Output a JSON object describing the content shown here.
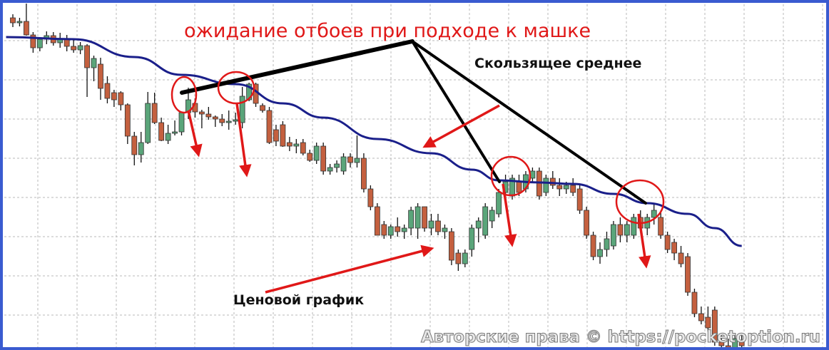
{
  "annotations": {
    "title": "ожидание отбоев при подходе к машке",
    "ma_label": "Скользящее среднее",
    "price_label": "Ценовой график",
    "watermark": "Авторские права © https://pocketoption.ru"
  },
  "colors": {
    "border": "#3a5bd0",
    "ma_line": "#1a1f8a",
    "bull_candle": "#5aa57a",
    "bear_candle": "#c4603f",
    "annotation_red": "#e01818",
    "grid": "#b8b8b8"
  },
  "chart_data": {
    "type": "candlestick",
    "title": "",
    "xlabel": "",
    "ylabel": "",
    "grid": true,
    "ylim": [
      0,
      50
    ],
    "candles_ohlc": [
      [
        47.5,
        48,
        46.2,
        46.8
      ],
      [
        46.9,
        47.5,
        46.3,
        47.0
      ],
      [
        47.0,
        49.5,
        45.0,
        45.1
      ],
      [
        45.1,
        45.5,
        42.6,
        43.3
      ],
      [
        43.3,
        44.7,
        42.8,
        44.5
      ],
      [
        44.5,
        45.6,
        43.8,
        45.0
      ],
      [
        45.0,
        45.5,
        43.6,
        44.0
      ],
      [
        44.0,
        45.4,
        43.3,
        44.6
      ],
      [
        44.6,
        45.1,
        42.8,
        43.5
      ],
      [
        43.5,
        44.4,
        42.6,
        43.0
      ],
      [
        43.0,
        44.1,
        42.4,
        43.6
      ],
      [
        43.6,
        43.8,
        36.4,
        40.5
      ],
      [
        40.5,
        42.2,
        38.6,
        41.8
      ],
      [
        41.0,
        41.9,
        36.0,
        37.6
      ],
      [
        38.3,
        39.3,
        35.5,
        36.2
      ],
      [
        37.0,
        37.4,
        35.0,
        36.0
      ],
      [
        37.0,
        37.2,
        34.5,
        35.3
      ],
      [
        35.3,
        35.5,
        29.8,
        30.9
      ],
      [
        30.9,
        31.5,
        26.8,
        28.3
      ],
      [
        28.3,
        31.5,
        27.2,
        30.0
      ],
      [
        30.0,
        37.1,
        29.8,
        35.5
      ],
      [
        35.5,
        37.0,
        32.6,
        32.8
      ],
      [
        32.8,
        33.5,
        30.2,
        30.3
      ],
      [
        30.3,
        32.5,
        29.8,
        31.3
      ],
      [
        31.3,
        33.1,
        31.0,
        31.5
      ],
      [
        31.5,
        34.3,
        31.0,
        34.2
      ],
      [
        34.2,
        37.7,
        33.3,
        36.0
      ],
      [
        35.5,
        36.2,
        33.5,
        34.3
      ],
      [
        34.3,
        34.6,
        32.0,
        34.0
      ],
      [
        34.0,
        35.0,
        33.2,
        33.6
      ],
      [
        33.6,
        33.8,
        32.2,
        33.3
      ],
      [
        33.3,
        34.0,
        32.3,
        32.8
      ],
      [
        32.8,
        34.5,
        31.8,
        33.0
      ],
      [
        33.0,
        34.2,
        32.5,
        33.2
      ],
      [
        32.8,
        37.8,
        32.0,
        36.5
      ],
      [
        36.0,
        38.4,
        35.8,
        38.2
      ],
      [
        38.2,
        38.4,
        35.0,
        35.5
      ],
      [
        35.2,
        35.5,
        34.2,
        34.5
      ],
      [
        34.5,
        35.0,
        29.8,
        30.0
      ],
      [
        31.8,
        32.5,
        29.5,
        30.2
      ],
      [
        32.5,
        33.0,
        29.4,
        29.5
      ],
      [
        30.0,
        30.8,
        28.8,
        29.5
      ],
      [
        29.5,
        30.5,
        28.5,
        29.8
      ],
      [
        30.0,
        30.5,
        28.2,
        28.5
      ],
      [
        28.5,
        29.0,
        27.3,
        27.5
      ],
      [
        27.5,
        30.0,
        27.0,
        29.5
      ],
      [
        29.5,
        30.0,
        25.5,
        26.0
      ],
      [
        26.0,
        27.0,
        25.5,
        26.5
      ],
      [
        26.5,
        27.5,
        25.8,
        27.0
      ],
      [
        26.0,
        28.5,
        25.5,
        28.0
      ],
      [
        28.0,
        28.5,
        26.5,
        27.2
      ],
      [
        27.2,
        31.0,
        26.5,
        27.8
      ],
      [
        27.8,
        28.5,
        23.0,
        23.5
      ],
      [
        23.5,
        24.0,
        20.5,
        21.0
      ],
      [
        21.0,
        21.5,
        17.0,
        17.0
      ],
      [
        18.5,
        19.0,
        16.5,
        17.0
      ],
      [
        17.0,
        18.5,
        16.5,
        18.2
      ],
      [
        18.2,
        19.5,
        16.8,
        17.5
      ],
      [
        17.5,
        18.5,
        16.5,
        18.0
      ],
      [
        18.0,
        21.0,
        17.0,
        20.5
      ],
      [
        18.0,
        21.5,
        16.5,
        21.0
      ],
      [
        21.0,
        21.0,
        17.5,
        18.0
      ],
      [
        18.0,
        20.0,
        17.0,
        19.0
      ],
      [
        19.0,
        20.0,
        17.0,
        17.5
      ],
      [
        17.5,
        18.5,
        16.5,
        18.0
      ],
      [
        17.5,
        18.0,
        12.8,
        13.5
      ],
      [
        14.5,
        15.0,
        12.0,
        13.0
      ],
      [
        13.0,
        15.0,
        12.5,
        14.5
      ],
      [
        15.0,
        18.5,
        14.0,
        18.0
      ],
      [
        18.0,
        19.5,
        16.0,
        19.0
      ],
      [
        17.0,
        21.5,
        16.5,
        21.0
      ],
      [
        19.0,
        21.0,
        18.0,
        20.5
      ],
      [
        20.0,
        23.5,
        19.5,
        23.0
      ],
      [
        23.0,
        25.5,
        22.0,
        24.5
      ],
      [
        22.5,
        25.5,
        22.0,
        25.0
      ],
      [
        24.5,
        25.5,
        22.5,
        23.0
      ],
      [
        23.5,
        26.0,
        23.0,
        25.5
      ],
      [
        25.0,
        26.5,
        24.5,
        26.0
      ],
      [
        26.0,
        26.5,
        22.0,
        22.5
      ],
      [
        23.0,
        25.5,
        22.5,
        25.0
      ],
      [
        25.0,
        26.0,
        23.5,
        24.0
      ],
      [
        24.0,
        25.0,
        22.5,
        23.5
      ],
      [
        23.5,
        24.5,
        22.8,
        24.0
      ],
      [
        24.0,
        25.0,
        22.5,
        23.0
      ],
      [
        23.5,
        24.0,
        20.0,
        20.5
      ],
      [
        20.5,
        21.0,
        16.5,
        17.0
      ],
      [
        17.0,
        17.5,
        13.5,
        14.0
      ],
      [
        14.0,
        16.0,
        13.0,
        15.0
      ],
      [
        15.0,
        17.5,
        14.0,
        16.5
      ],
      [
        15.5,
        19.0,
        15.0,
        18.5
      ],
      [
        18.5,
        19.5,
        16.0,
        17.0
      ],
      [
        17.0,
        19.0,
        16.0,
        18.5
      ],
      [
        17.0,
        20.0,
        16.5,
        19.5
      ],
      [
        19.5,
        20.5,
        17.5,
        18.0
      ],
      [
        18.0,
        20.0,
        17.0,
        19.5
      ],
      [
        19.5,
        21.5,
        18.5,
        20.5
      ],
      [
        19.5,
        20.5,
        16.5,
        17.0
      ],
      [
        17.0,
        17.5,
        14.5,
        15.0
      ],
      [
        16.0,
        16.5,
        13.5,
        14.5
      ],
      [
        14.5,
        15.5,
        12.5,
        13.0
      ],
      [
        14.0,
        14.5,
        8.5,
        9.0
      ],
      [
        9.0,
        9.5,
        5.5,
        6.0
      ],
      [
        6.0,
        7.0,
        4.5,
        5.0
      ],
      [
        5.5,
        7.0,
        3.5,
        4.0
      ],
      [
        6.5,
        7.0,
        1.5,
        2.0
      ],
      [
        2.0,
        3.0,
        1.0,
        1.5
      ],
      [
        1.5,
        2.5,
        0.8,
        1.2
      ],
      [
        1.2,
        3.0,
        0.8,
        2.5
      ],
      [
        2.0,
        3.0,
        1.0,
        1.5
      ]
    ],
    "moving_average": {
      "name": "Скользящее среднее",
      "points": [
        [
          -1,
          44.8
        ],
        [
          9,
          44.5
        ],
        [
          18,
          42
        ],
        [
          25,
          39.5
        ],
        [
          33,
          38.2
        ],
        [
          40,
          35.5
        ],
        [
          46,
          33.5
        ],
        [
          54,
          30.5
        ],
        [
          62,
          28.5
        ],
        [
          68,
          26.2
        ],
        [
          72,
          24.7
        ],
        [
          78,
          24.4
        ],
        [
          83,
          24.2
        ],
        [
          89,
          22.8
        ],
        [
          94,
          21.5
        ],
        [
          100,
          20
        ],
        [
          104,
          18
        ],
        [
          108,
          15.5
        ]
      ]
    }
  }
}
